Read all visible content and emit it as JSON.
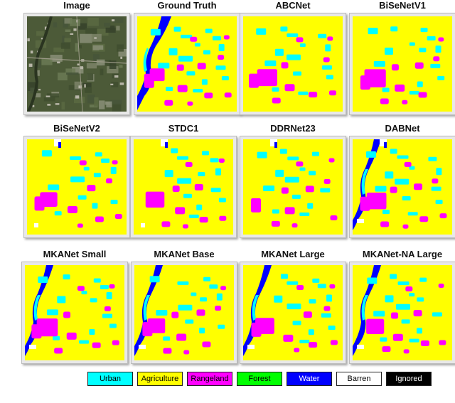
{
  "panels": [
    {
      "title": "Image",
      "type": "photo"
    },
    {
      "title": "Ground Truth",
      "type": "seg",
      "variant": 0
    },
    {
      "title": "ABCNet",
      "type": "seg",
      "variant": 1
    },
    {
      "title": "BiSeNetV1",
      "type": "seg",
      "variant": 2
    },
    {
      "title": "BiSeNetV2",
      "type": "seg",
      "variant": 3
    },
    {
      "title": "STDC1",
      "type": "seg",
      "variant": 4
    },
    {
      "title": "DDRNet23",
      "type": "seg",
      "variant": 5
    },
    {
      "title": "DABNet",
      "type": "seg",
      "variant": 6
    },
    {
      "title": "MKANet Small",
      "type": "seg",
      "variant": 7
    },
    {
      "title": "MKANet Base",
      "type": "seg",
      "variant": 8
    },
    {
      "title": "MKANet Large",
      "type": "seg",
      "variant": 9
    },
    {
      "title": "MKANet-NA Large",
      "type": "seg",
      "variant": 10
    }
  ],
  "legend": [
    {
      "label": "Urban",
      "color": "#00ffff",
      "text_color": "#000000"
    },
    {
      "label": "Agriculture",
      "color": "#ffff00",
      "text_color": "#000000"
    },
    {
      "label": "Rangeland",
      "color": "#ff00ff",
      "text_color": "#000000"
    },
    {
      "label": "Forest",
      "color": "#00ff00",
      "text_color": "#000000"
    },
    {
      "label": "Water",
      "color": "#0000ff",
      "text_color": "#ffffff"
    },
    {
      "label": "Barren",
      "color": "#ffffff",
      "text_color": "#000000"
    },
    {
      "label": "Ignored",
      "color": "#000000",
      "text_color": "#ffffff"
    }
  ]
}
